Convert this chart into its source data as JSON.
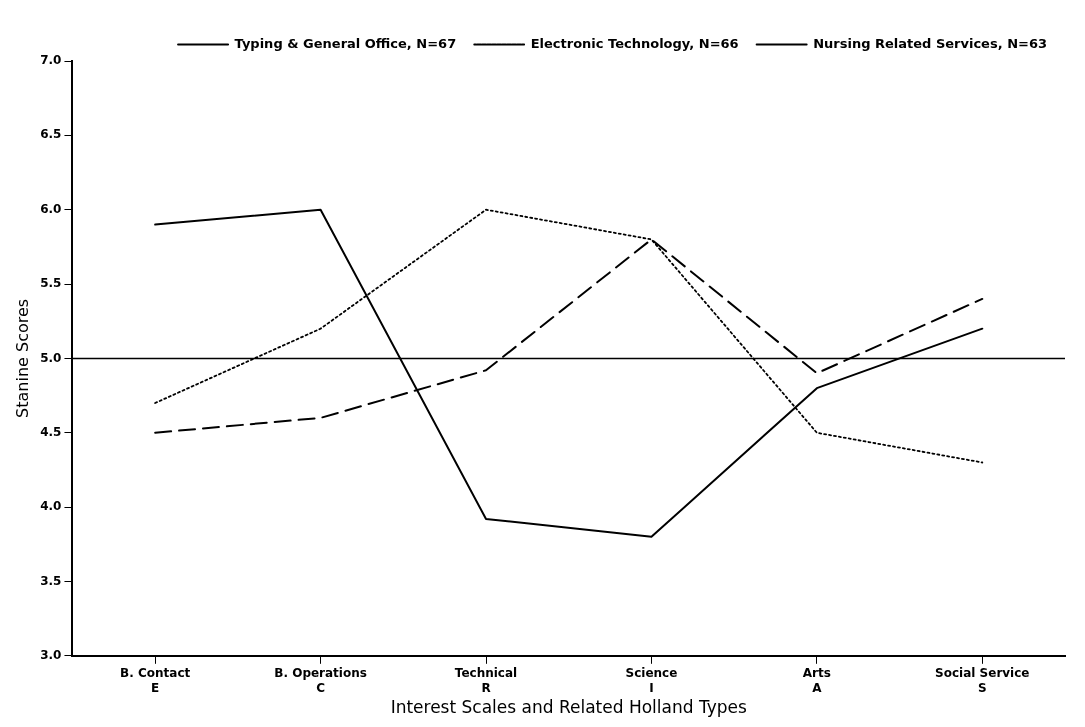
{
  "chart_data": {
    "type": "line",
    "categories": [
      "B. Contact\nE",
      "B. Operations\nC",
      "Technical\nR",
      "Science\nI",
      "Arts\nA",
      "Social Service\nS"
    ],
    "series": [
      {
        "name": "Typing & General Office, N=67",
        "color": "#000000",
        "line_style": "solid",
        "values": [
          5.9,
          6.0,
          3.92,
          3.8,
          4.8,
          5.2
        ]
      },
      {
        "name": "Electronic Technology, N=66",
        "color": "#000000",
        "line_style": "dotted",
        "values": [
          4.7,
          5.2,
          6.0,
          5.8,
          4.5,
          4.3
        ]
      },
      {
        "name": "Nursing Related Services, N=63",
        "color": "#000000",
        "line_style": "dashed",
        "values": [
          4.5,
          4.6,
          4.92,
          5.8,
          4.9,
          5.4
        ]
      }
    ],
    "xlabel": "Interest Scales and Related Holland Types",
    "ylabel": "Stanine Scores",
    "ylim": [
      3,
      7
    ],
    "yticks": [
      {
        "value": 3,
        "label": "3.0"
      },
      {
        "value": 3.5,
        "label": "3.5"
      },
      {
        "value": 4,
        "label": "4.0"
      },
      {
        "value": 4.5,
        "label": "4.5"
      },
      {
        "value": 5,
        "label": "5.0"
      },
      {
        "value": 5.5,
        "label": "5.5"
      },
      {
        "value": 6,
        "label": "6.0"
      },
      {
        "value": 6.5,
        "label": "6.5"
      },
      {
        "value": 7,
        "label": "7.0"
      }
    ],
    "ref_lines": [
      {
        "axis": "y",
        "value": 5,
        "color": "#000000"
      }
    ],
    "grid": false,
    "legend": "top right",
    "marker": "none"
  }
}
